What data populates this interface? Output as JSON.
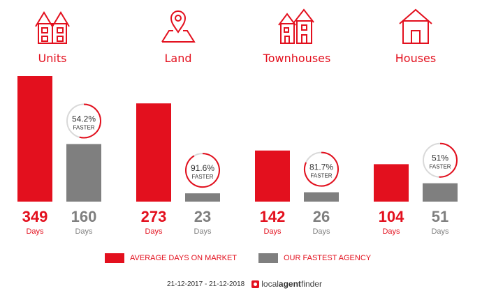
{
  "categories": [
    {
      "label": "Units",
      "icon": "units-icon"
    },
    {
      "label": "Land",
      "icon": "land-icon"
    },
    {
      "label": "Townhouses",
      "icon": "townhouses-icon"
    },
    {
      "label": "Houses",
      "icon": "houses-icon"
    }
  ],
  "chart_data": {
    "type": "bar",
    "categories": [
      "Units",
      "Land",
      "Townhouses",
      "Houses"
    ],
    "series": [
      {
        "name": "AVERAGE DAYS ON MARKET",
        "values": [
          349,
          273,
          142,
          104
        ]
      },
      {
        "name": "OUR FASTEST AGENCY",
        "values": [
          160,
          23,
          26,
          51
        ]
      }
    ],
    "value_unit": "Days",
    "badges": [
      "54.2%",
      "91.6%",
      "81.7%",
      "51%"
    ],
    "badge_caption": "FASTER",
    "colors": {
      "average": "#e3101e",
      "fastest": "#7f7f7f"
    }
  },
  "legend": {
    "average_label": "AVERAGE DAYS ON MARKET",
    "fastest_label": "OUR FASTEST AGENCY"
  },
  "footer": {
    "date_range": "21-12-2017 - 21-12-2018",
    "brand_light": "local",
    "brand_bold": "agent",
    "brand_tail": "finder"
  }
}
